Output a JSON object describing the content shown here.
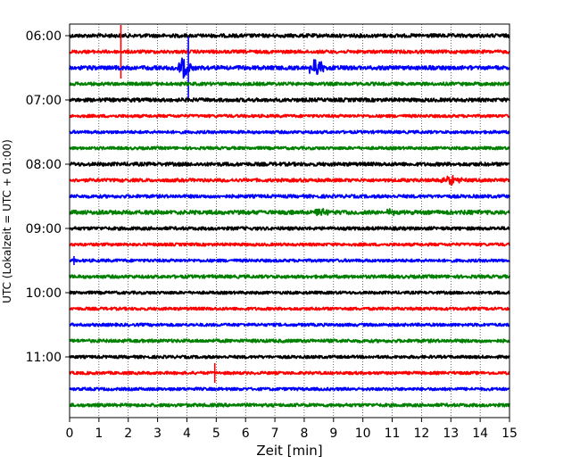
{
  "chart_data": {
    "type": "line",
    "title": "",
    "xlabel": "Zeit  [min]",
    "ylabel": "UTC (Lokalzeit = UTC + 01:00)",
    "xlim": [
      0,
      15
    ],
    "x_ticks": [
      "0",
      "1",
      "2",
      "3",
      "4",
      "5",
      "6",
      "7",
      "8",
      "9",
      "10",
      "11",
      "12",
      "13",
      "14",
      "15"
    ],
    "y_tick_labels": [
      "06:00",
      "07:00",
      "08:00",
      "09:00",
      "10:00",
      "11:00"
    ],
    "trace_interval_minutes": 15,
    "grid": {
      "vertical": true,
      "style": "dotted"
    },
    "series_colors": [
      "#000000",
      "#ff0000",
      "#0000ff",
      "#008000"
    ],
    "traces": [
      {
        "start": "06:00",
        "color": "#000000",
        "noise": 2.0
      },
      {
        "start": "06:15",
        "color": "#ff0000",
        "noise": 1.8,
        "events": [
          {
            "t": 1.75,
            "amp": 30,
            "type": "spike"
          }
        ]
      },
      {
        "start": "06:30",
        "color": "#0000ff",
        "noise": 2.2,
        "events": [
          {
            "t": 3.9,
            "amp": 12,
            "type": "burst",
            "width": 0.45
          },
          {
            "t": 4.05,
            "amp": 35,
            "type": "spike"
          },
          {
            "t": 8.4,
            "amp": 12,
            "type": "burst",
            "width": 0.45
          }
        ]
      },
      {
        "start": "06:45",
        "color": "#008000",
        "noise": 1.8
      },
      {
        "start": "07:00",
        "color": "#000000",
        "noise": 2.0
      },
      {
        "start": "07:15",
        "color": "#ff0000",
        "noise": 1.6
      },
      {
        "start": "07:30",
        "color": "#0000ff",
        "noise": 1.6
      },
      {
        "start": "07:45",
        "color": "#008000",
        "noise": 1.6
      },
      {
        "start": "08:00",
        "color": "#000000",
        "noise": 2.0
      },
      {
        "start": "08:15",
        "color": "#ff0000",
        "noise": 1.8,
        "events": [
          {
            "t": 13.0,
            "amp": 4,
            "type": "burst",
            "width": 0.8
          }
        ]
      },
      {
        "start": "08:30",
        "color": "#0000ff",
        "noise": 1.8
      },
      {
        "start": "08:45",
        "color": "#008000",
        "noise": 2.2,
        "events": [
          {
            "t": 8.6,
            "amp": 3,
            "type": "burst",
            "width": 0.6
          },
          {
            "t": 10.9,
            "amp": 3,
            "type": "burst",
            "width": 0.4
          }
        ]
      },
      {
        "start": "09:00",
        "color": "#000000",
        "noise": 1.8
      },
      {
        "start": "09:15",
        "color": "#ff0000",
        "noise": 1.6
      },
      {
        "start": "09:30",
        "color": "#0000ff",
        "noise": 1.6,
        "events": [
          {
            "t": 0.15,
            "amp": 5,
            "type": "spike"
          }
        ]
      },
      {
        "start": "09:45",
        "color": "#008000",
        "noise": 1.8
      },
      {
        "start": "10:00",
        "color": "#000000",
        "noise": 1.6
      },
      {
        "start": "10:15",
        "color": "#ff0000",
        "noise": 1.6
      },
      {
        "start": "10:30",
        "color": "#0000ff",
        "noise": 1.6
      },
      {
        "start": "10:45",
        "color": "#008000",
        "noise": 1.8
      },
      {
        "start": "11:00",
        "color": "#000000",
        "noise": 1.6
      },
      {
        "start": "11:15",
        "color": "#ff0000",
        "noise": 1.6,
        "events": [
          {
            "t": 4.95,
            "amp": 11,
            "type": "spike"
          }
        ]
      },
      {
        "start": "11:30",
        "color": "#0000ff",
        "noise": 1.6
      },
      {
        "start": "11:45",
        "color": "#008000",
        "noise": 1.8
      }
    ]
  }
}
